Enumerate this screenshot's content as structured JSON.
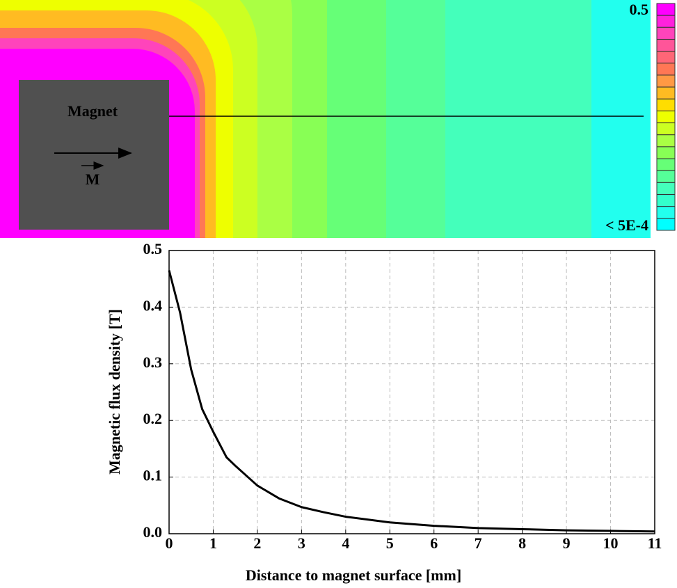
{
  "field_map": {
    "magnet_label": "Magnet",
    "vector_label": "M",
    "colorbar": {
      "max_label": "0.5",
      "min_label": "< 5E-4",
      "colors": [
        "#ff00ff",
        "#ff22dd",
        "#ff44bb",
        "#ff5599",
        "#ff6677",
        "#ff7755",
        "#ff9944",
        "#ffbb22",
        "#ffdd00",
        "#eeff00",
        "#ccff22",
        "#aaff44",
        "#88ff55",
        "#66ff77",
        "#55ff99",
        "#44ffbb",
        "#33ffcc",
        "#22ffee",
        "#00ffff"
      ]
    }
  },
  "chart_data": {
    "type": "line",
    "xlabel": "Distance to magnet surface [mm]",
    "ylabel": "Magnetic flux density [T]",
    "x": [
      0,
      0.25,
      0.5,
      0.75,
      1,
      1.3,
      1.5,
      2,
      2.5,
      3,
      3.5,
      4,
      5,
      6,
      7,
      8,
      9,
      10,
      11
    ],
    "values": [
      0.465,
      0.39,
      0.29,
      0.22,
      0.18,
      0.135,
      0.12,
      0.085,
      0.062,
      0.047,
      0.038,
      0.03,
      0.02,
      0.014,
      0.01,
      0.008,
      0.006,
      0.005,
      0.004
    ],
    "color": "#000000",
    "xlim": [
      0,
      11
    ],
    "xticks": [
      0,
      1,
      2,
      3,
      4,
      5,
      6,
      7,
      8,
      9,
      10,
      11
    ],
    "ylim": [
      0,
      0.5
    ],
    "yticks": [
      {
        "value": 0,
        "label": "0.0"
      },
      0.1,
      0.2,
      0.3,
      0.4,
      0.5
    ],
    "grid": true
  }
}
